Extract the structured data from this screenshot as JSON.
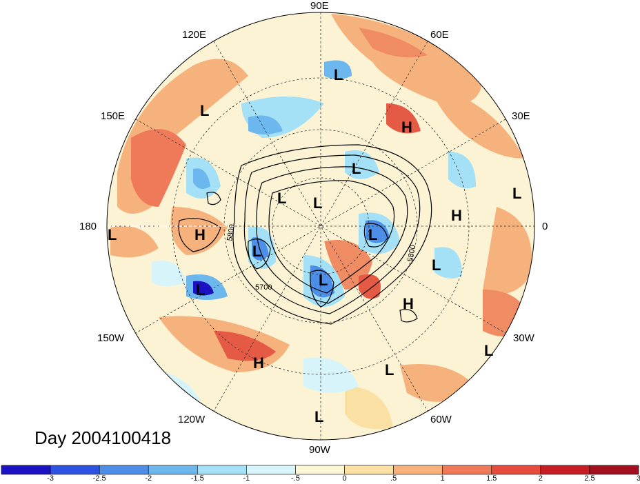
{
  "title": "Day 2004100418",
  "longitude_labels": {
    "e90": "90E",
    "e120": "120E",
    "e60": "60E",
    "e150": "150E",
    "e30": "30E",
    "deg180": "180",
    "deg0": "0",
    "w150": "150W",
    "w30": "30W",
    "w120": "120W",
    "w60": "60W",
    "w90": "90W"
  },
  "contour_labels": [
    "5800",
    "5700",
    "5800"
  ],
  "pressure_centers": [
    "L",
    "L",
    "L",
    "H",
    "L",
    "L",
    "L",
    "L",
    "L",
    "L",
    "H",
    "H",
    "L",
    "L",
    "L",
    "H",
    "L",
    "H",
    "L",
    "L"
  ],
  "colorbar": {
    "colors": [
      "#1b12c4",
      "#2d52e4",
      "#4c8ee8",
      "#6db7ef",
      "#a4e1f6",
      "#d7f4fb",
      "#fbf6d5",
      "#fbe0a4",
      "#f9b07a",
      "#f07a58",
      "#e84a3c",
      "#c91d26",
      "#a30f1e"
    ],
    "ticks": [
      "-3",
      "-2.5",
      "-2",
      "-1.5",
      "-1",
      "-.5",
      "0",
      ".5",
      "1",
      "1.5",
      "2",
      "2.5",
      "3"
    ]
  }
}
